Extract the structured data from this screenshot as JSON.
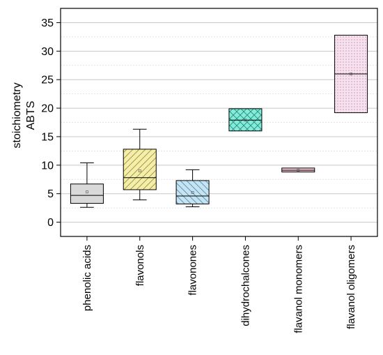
{
  "chart_data": {
    "type": "box",
    "title": "",
    "xlabel": "",
    "ylabel_lines": [
      "stoichiometry",
      "ABTS"
    ],
    "ylim": [
      -2.5,
      37.5
    ],
    "yticks": [
      0,
      5,
      10,
      15,
      20,
      25,
      30,
      35
    ],
    "minor_grid_step": 2.5,
    "grid": true,
    "categories": [
      "phenolic acids",
      "flavonols",
      "flavonones",
      "dihydrochalcones",
      "flavanol monomers",
      "flavanol oligomers"
    ],
    "boxes": [
      {
        "category": "phenolic acids",
        "whisker_low": 2.6,
        "q1": 3.3,
        "median": 4.7,
        "q3": 6.7,
        "whisker_high": 10.4,
        "mean": 5.3,
        "fill": "#d9d9d9",
        "pattern": "none"
      },
      {
        "category": "flavonols",
        "whisker_low": 3.9,
        "q1": 5.7,
        "median": 7.8,
        "q3": 12.8,
        "whisker_high": 16.3,
        "mean": 9.0,
        "fill": "#f5eeaa",
        "pattern": "diag-right"
      },
      {
        "category": "flavonones",
        "whisker_low": 2.7,
        "q1": 3.2,
        "median": 4.6,
        "q3": 7.3,
        "whisker_high": 9.2,
        "mean": 5.2,
        "fill": "#c7e3f2",
        "pattern": "diag-left"
      },
      {
        "category": "dihydrochalcones",
        "whisker_low": 16.0,
        "q1": 16.0,
        "median": 17.9,
        "q3": 19.9,
        "whisker_high": 19.9,
        "mean": 17.9,
        "fill": "#86ead8",
        "pattern": "cross"
      },
      {
        "category": "flavanol monomers",
        "whisker_low": 8.8,
        "q1": 8.8,
        "median": 9.1,
        "q3": 9.5,
        "whisker_high": 9.5,
        "mean": 9.1,
        "fill": "#f2c9d2",
        "pattern": "none"
      },
      {
        "category": "flavanol oligomers",
        "whisker_low": 19.2,
        "q1": 19.2,
        "median": 26.0,
        "q3": 32.8,
        "whisker_high": 32.8,
        "mean": 26.0,
        "fill": "#f6e2ee",
        "pattern": "dots"
      }
    ]
  }
}
